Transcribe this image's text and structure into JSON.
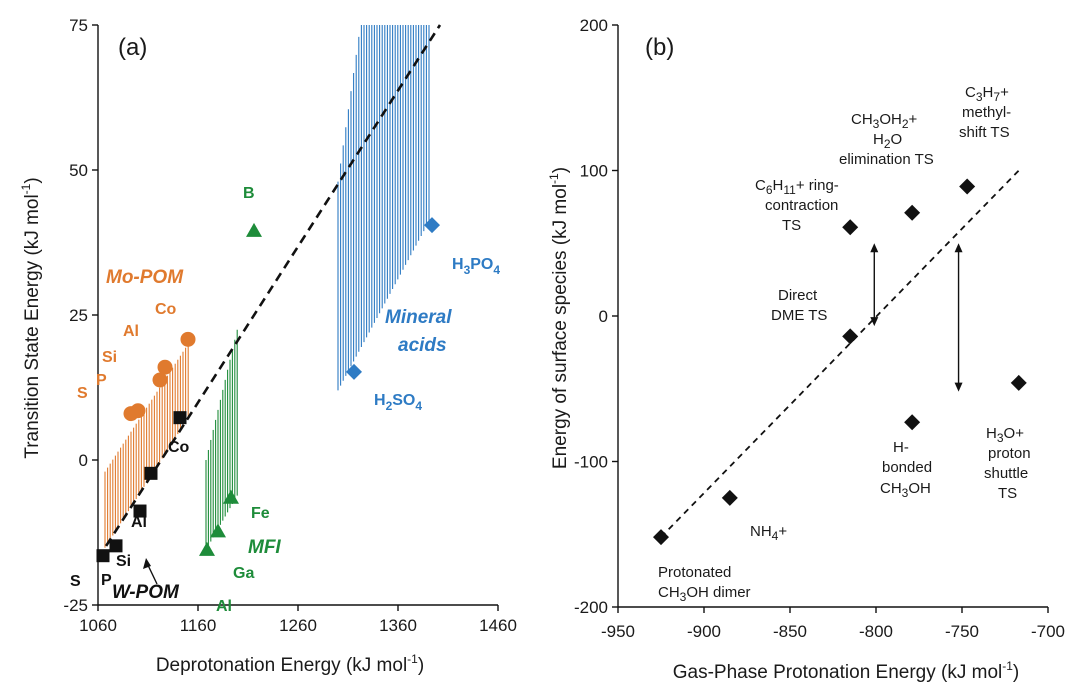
{
  "colors": {
    "mo": "#E07A2E",
    "w": "#111111",
    "mfi": "#1E8C3A",
    "mineral": "#2E7BC4",
    "b": "#111111"
  },
  "chart_data": [
    {
      "type": "scatter",
      "panel_label": "(a)",
      "xlabel": "Deprotonation Energy (kJ mol",
      "xlabel_sup": "-1",
      "xlabel_tail": ")",
      "ylabel": "Transition State Energy (kJ mol",
      "ylabel_sup": "-1",
      "ylabel_tail": ")",
      "xlim": [
        1060,
        1460
      ],
      "ylim": [
        -25,
        75
      ],
      "xticks": [
        "1060",
        "1160",
        "1260",
        "1360",
        "1460"
      ],
      "yticks": [
        "-25",
        "0",
        "25",
        "50",
        "75"
      ],
      "groups": [
        {
          "name": "Mo-POM",
          "color_key": "mo",
          "marker": "circle",
          "points": [
            {
              "label": "S",
              "x": 1093,
              "y": 8
            },
            {
              "label": "P",
              "x": 1100,
              "y": 8.5
            },
            {
              "label": "Si",
              "x": 1122,
              "y": 13.8
            },
            {
              "label": "Al",
              "x": 1127,
              "y": 16
            },
            {
              "label": "Co",
              "x": 1150,
              "y": 20.8
            }
          ]
        },
        {
          "name": "W-POM",
          "color_key": "w",
          "marker": "square",
          "points": [
            {
              "label": "S",
              "x": 1065,
              "y": -16.5
            },
            {
              "label": "P",
              "x": 1078,
              "y": -14.8
            },
            {
              "label": "Si",
              "x": 1102,
              "y": -8.8
            },
            {
              "label": "Al",
              "x": 1113,
              "y": -2.3
            },
            {
              "label": "Co",
              "x": 1142,
              "y": 7.3
            }
          ]
        },
        {
          "name": "MFI",
          "color_key": "mfi",
          "marker": "triangle",
          "points": [
            {
              "label": "Al",
              "x": 1169,
              "y": -15.5
            },
            {
              "label": "Ga",
              "x": 1180,
              "y": -12.3
            },
            {
              "label": "Fe",
              "x": 1193,
              "y": -6.5
            },
            {
              "label": "B",
              "x": 1216,
              "y": 39.5
            }
          ]
        },
        {
          "name": "Mineral acids",
          "color_key": "mineral",
          "marker": "diamond",
          "points": [
            {
              "label": "H2SO4",
              "x": 1316,
              "y": 15.2
            },
            {
              "label": "H3PO4",
              "x": 1394,
              "y": 40.5
            }
          ]
        }
      ],
      "trendline": {
        "x": [
          1060,
          1402
        ],
        "y": [
          -17,
          75
        ]
      },
      "annotations": {
        "mo": "Mo-POM",
        "w": "W-POM",
        "mfi": "MFI",
        "mineral_1": "Mineral",
        "mineral_2": "acids"
      }
    },
    {
      "type": "scatter",
      "panel_label": "(b)",
      "xlabel": "Gas-Phase Protonation Energy (kJ mol",
      "xlabel_sup": "-1",
      "xlabel_tail": ")",
      "ylabel": "Energy of surface species (kJ mol",
      "ylabel_sup": "-1",
      "ylabel_tail": ")",
      "xlim": [
        -950,
        -700
      ],
      "ylim": [
        -200,
        200
      ],
      "xticks": [
        "-950",
        "-900",
        "-850",
        "-800",
        "-750",
        "-700"
      ],
      "yticks": [
        "-200",
        "-100",
        "0",
        "100",
        "200"
      ],
      "points": [
        {
          "x": -925,
          "y": -152
        },
        {
          "x": -885,
          "y": -125
        },
        {
          "x": -815,
          "y": -14
        },
        {
          "x": -815,
          "y": 61
        },
        {
          "x": -779,
          "y": 71
        },
        {
          "x": -779,
          "y": -73
        },
        {
          "x": -747,
          "y": 89
        },
        {
          "x": -717,
          "y": -46
        }
      ],
      "trendline": {
        "x": [
          -925,
          -717
        ],
        "y": [
          -152,
          100
        ]
      },
      "arrows": [
        {
          "x": -801,
          "y1": 50,
          "y2": -7
        },
        {
          "x": -752,
          "y1": 50,
          "y2": -52
        }
      ],
      "labels": {
        "dimer_1": "Protonated",
        "dimer_2": "CH",
        "dimer_3": "OH dimer",
        "nh4": "NH",
        "nh4_tail": "+",
        "direct_1": "Direct",
        "direct_2": "DME TS",
        "hb_1": "H-",
        "hb_2": "bonded",
        "hb_3": "CH",
        "hb_4": "OH",
        "ring_1": "C",
        "ring_2": "H",
        "ring_3": "+ ring-",
        "ring_4": "contraction",
        "ring_5": "TS",
        "elim_1": "CH",
        "elim_2": "OH",
        "elim_3": "+",
        "elim_4": "H",
        "elim_5": "O",
        "elim_6": "elimination TS",
        "methyl_1": "C",
        "methyl_2": "H",
        "methyl_3": "+",
        "methyl_4": "methyl-",
        "methyl_5": "shift TS",
        "shuttle_1": "H",
        "shuttle_2": "O+",
        "shuttle_3": "proton",
        "shuttle_4": "shuttle",
        "shuttle_5": "TS"
      }
    }
  ]
}
